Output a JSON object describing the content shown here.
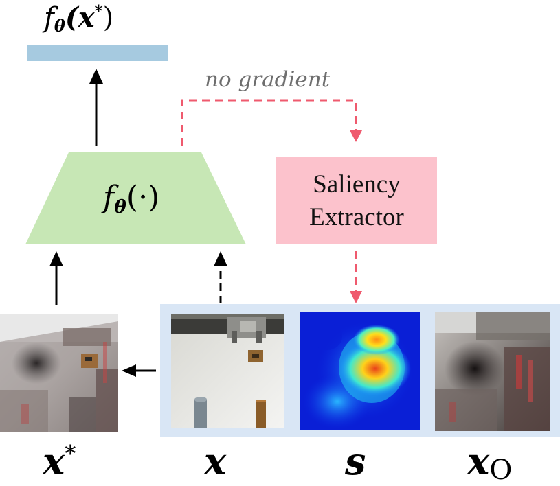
{
  "top_output": {
    "label_f": "f",
    "label_theta": "θ",
    "label_arg": "(x",
    "label_star": "*",
    "label_close": ")"
  },
  "network": {
    "label_f": "f",
    "label_theta": "θ",
    "label_arg": "(·)"
  },
  "no_gradient_label": "no gradient",
  "saliency_extractor": {
    "line1": "Saliency",
    "line2": "Extractor"
  },
  "bottom_labels": {
    "xstar_base": "x",
    "xstar_sup": "*",
    "x": "x",
    "s": "s",
    "xo_base": "x",
    "xo_sub": "O"
  },
  "colors": {
    "output_bar": "#a6cae0",
    "network": "#c7e7b5",
    "saliency_box": "#fcc2cc",
    "dashed_arrow": "#ef5a6e",
    "panel": "#d9e6f5"
  }
}
